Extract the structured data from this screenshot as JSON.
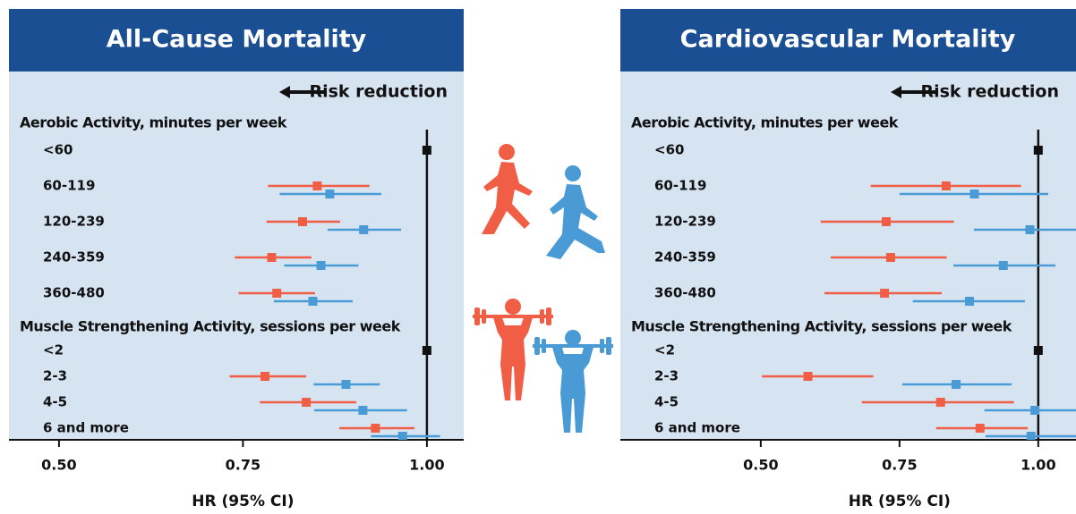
{
  "chart_data": [
    {
      "type": "forest",
      "title": "All-Cause  Mortality",
      "annotation": "Risk reduction",
      "xlabel": "HR (95% CI)",
      "xlim": [
        0.432,
        1.05
      ],
      "xticks": [
        {
          "value": 0.5,
          "label": "0.50"
        },
        {
          "value": 0.75,
          "label": "0.75"
        },
        {
          "value": 1.0,
          "label": "1.00"
        }
      ],
      "reference": 1,
      "reference_color": "#111111",
      "groups": [
        {
          "label": "Aerobic Activity, minutes per week",
          "categories": [
            "<60",
            "60-119",
            "120-239",
            "240-359",
            "360-480"
          ],
          "series": [
            {
              "color": "#ef5e45",
              "values": [
                null,
                0.851,
                0.831,
                0.789,
                0.796
              ],
              "lower": [
                null,
                0.784,
                0.782,
                0.739,
                0.744
              ],
              "upper": [
                null,
                0.922,
                0.882,
                0.843,
                0.848
              ]
            },
            {
              "color": "#4a9ad6",
              "values": [
                null,
                0.868,
                0.914,
                0.856,
                0.845
              ],
              "lower": [
                null,
                0.8,
                0.865,
                0.806,
                0.792
              ],
              "upper": [
                null,
                0.938,
                0.965,
                0.907,
                0.899
              ]
            }
          ]
        },
        {
          "label": "Muscle Strengthening Activity, sessions per week",
          "categories": [
            "<2",
            "2-3",
            "4-5",
            "6 and more"
          ],
          "series": [
            {
              "color": "#ef5e45",
              "values": [
                null,
                0.78,
                0.836,
                0.93
              ],
              "lower": [
                null,
                0.732,
                0.773,
                0.881
              ],
              "upper": [
                null,
                0.836,
                0.904,
                0.983
              ]
            },
            {
              "color": "#4a9ad6",
              "values": [
                null,
                0.89,
                0.913,
                0.967
              ],
              "lower": [
                null,
                0.846,
                0.847,
                0.924
              ],
              "upper": [
                null,
                0.936,
                0.973,
                1.018
              ]
            }
          ]
        }
      ]
    },
    {
      "type": "forest",
      "title": "Cardiovascular Mortality",
      "annotation": "Risk reduction",
      "xlabel": "HR (95% CI)",
      "xlim": [
        0.247,
        1.068
      ],
      "xticks": [
        {
          "value": 0.5,
          "label": "0.50"
        },
        {
          "value": 0.75,
          "label": "0.75"
        },
        {
          "value": 1.0,
          "label": "1.00"
        }
      ],
      "reference": 1,
      "reference_color": "#111111",
      "groups": [
        {
          "label": "Aerobic Activity, minutes per week",
          "categories": [
            "<60",
            "60-119",
            "120-239",
            "240-359",
            "360-480"
          ],
          "series": [
            {
              "color": "#ef5e45",
              "values": [
                null,
                0.834,
                0.726,
                0.734,
                0.723
              ],
              "lower": [
                null,
                0.698,
                0.608,
                0.626,
                0.615
              ],
              "upper": [
                null,
                0.969,
                0.848,
                0.835,
                0.826
              ]
            },
            {
              "color": "#4a9ad6",
              "values": [
                null,
                0.885,
                0.985,
                0.937,
                0.876
              ],
              "lower": [
                null,
                0.75,
                0.884,
                0.847,
                0.774
              ],
              "upper": [
                null,
                1.018,
                1.09,
                1.031,
                0.976
              ]
            }
          ]
        },
        {
          "label": "Muscle Strengthening Activity, sessions per week",
          "categories": [
            "<2",
            "2-3",
            "4-5",
            "6 and more"
          ],
          "series": [
            {
              "color": "#ef5e45",
              "values": [
                null,
                0.585,
                0.824,
                0.895
              ],
              "lower": [
                null,
                0.502,
                0.682,
                0.816
              ],
              "upper": [
                null,
                0.703,
                0.956,
                0.981
              ]
            },
            {
              "color": "#4a9ad6",
              "values": [
                null,
                0.852,
                0.994,
                0.987
              ],
              "lower": [
                null,
                0.755,
                0.903,
                0.905
              ],
              "upper": [
                null,
                0.952,
                1.09,
                1.08
              ]
            }
          ]
        }
      ]
    }
  ]
}
